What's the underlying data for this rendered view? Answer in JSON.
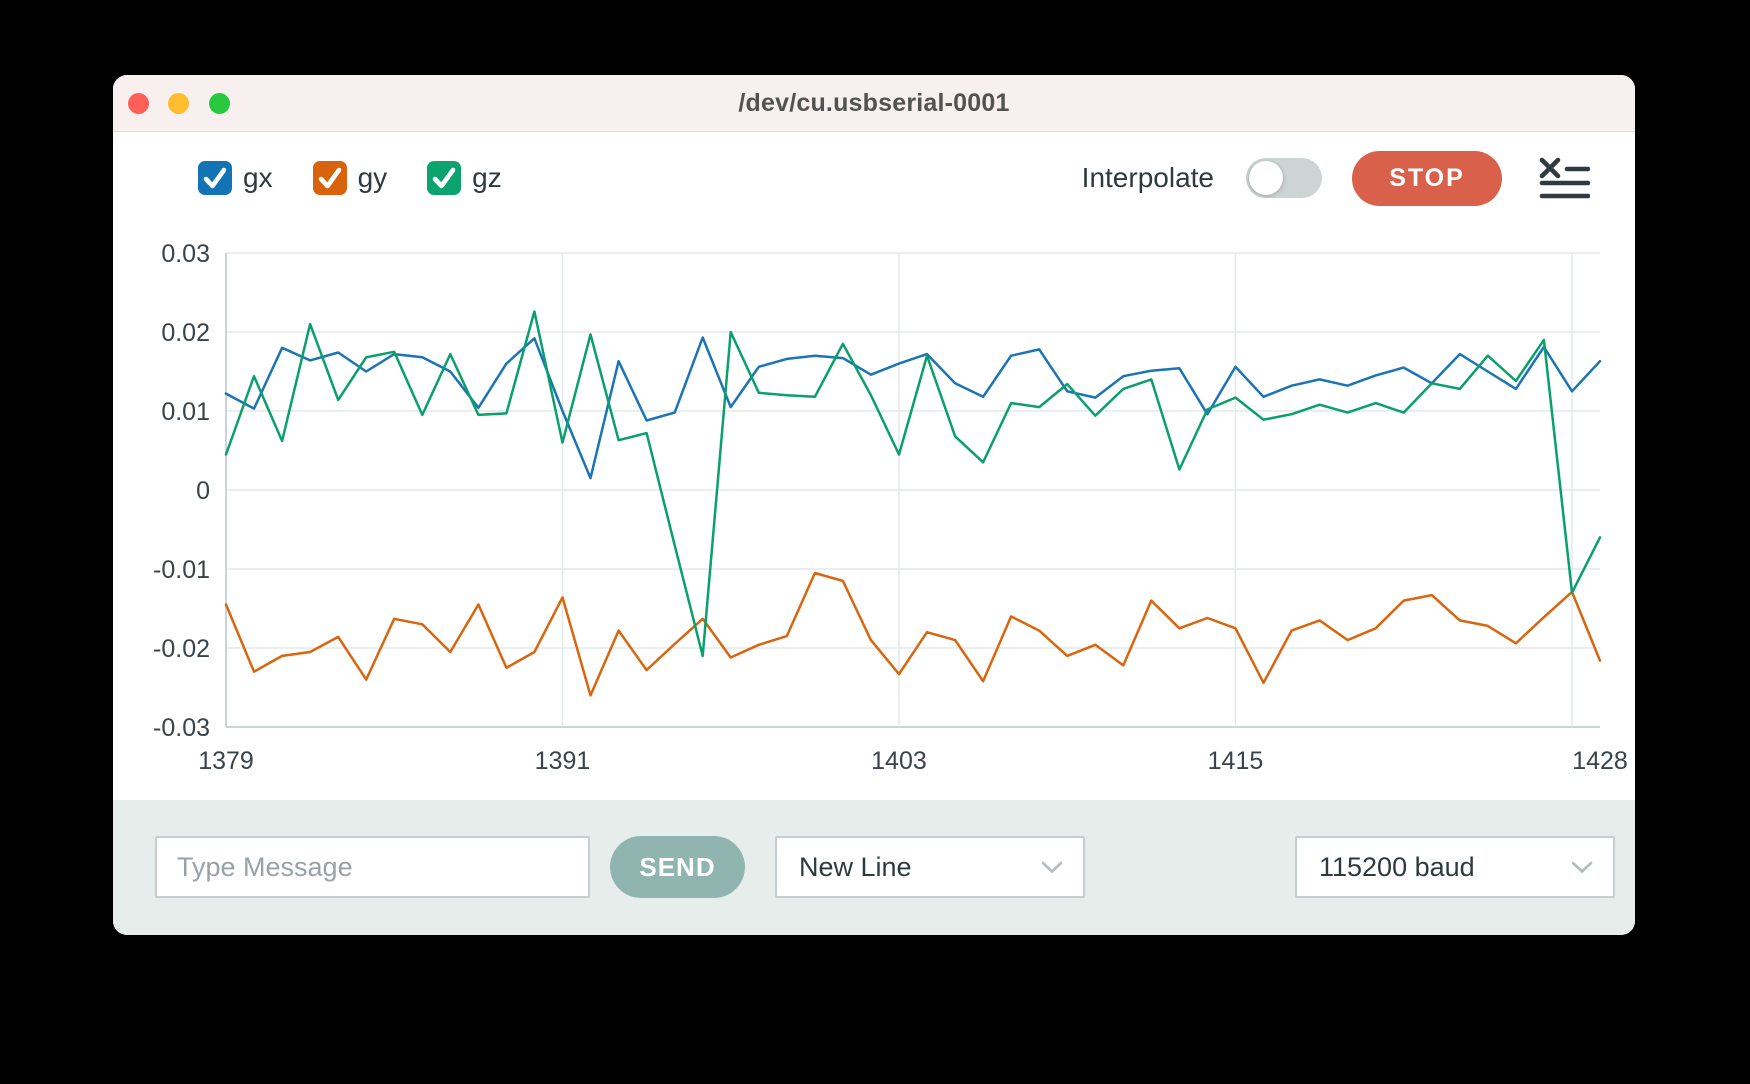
{
  "window": {
    "title": "/dev/cu.usbserial-0001"
  },
  "traffic_lights": {
    "close": "#ff5f57",
    "minimize": "#febc2e",
    "zoom": "#28c840"
  },
  "legend": {
    "items": [
      {
        "id": "gx",
        "label": "gx",
        "color": "#1273b5",
        "checked": true
      },
      {
        "id": "gy",
        "label": "gy",
        "color": "#d9620d",
        "checked": true
      },
      {
        "id": "gz",
        "label": "gz",
        "color": "#0ca36e",
        "checked": true
      }
    ]
  },
  "controls": {
    "interpolate_label": "Interpolate",
    "interpolate_on": false,
    "stop_label": "STOP",
    "stop_color": "#d9604b",
    "clear_icon": "clear-list-icon",
    "icon_color": "#2f3b40"
  },
  "chart_data": {
    "type": "line",
    "title": "",
    "xlabel": "",
    "ylabel": "",
    "xlim": [
      1379,
      1428
    ],
    "ylim": [
      -0.03,
      0.03
    ],
    "grid": true,
    "legend_position": "top-left",
    "y_ticks": [
      "0.03",
      "0.02",
      "0.01",
      "0",
      "-0.01",
      "-0.02",
      "-0.03"
    ],
    "y_tick_values": [
      0.03,
      0.02,
      0.01,
      0,
      -0.01,
      -0.02,
      -0.03
    ],
    "x_tick_labels": [
      "1379",
      "1391",
      "1403",
      "1415",
      "1428"
    ],
    "x_tick_values": [
      1379,
      1391,
      1403,
      1415,
      1428
    ],
    "x_gridline_values": [
      1379,
      1391,
      1403,
      1415,
      1427
    ],
    "x": [
      1379,
      1380,
      1381,
      1382,
      1383,
      1384,
      1385,
      1386,
      1387,
      1388,
      1389,
      1390,
      1391,
      1392,
      1393,
      1394,
      1395,
      1396,
      1397,
      1398,
      1399,
      1400,
      1401,
      1402,
      1403,
      1404,
      1405,
      1406,
      1407,
      1408,
      1409,
      1410,
      1411,
      1412,
      1413,
      1414,
      1415,
      1416,
      1417,
      1418,
      1419,
      1420,
      1421,
      1422,
      1423,
      1424,
      1425,
      1426,
      1427,
      1428
    ],
    "series": [
      {
        "name": "gx",
        "color": "#1b74b5",
        "values": [
          0.0122,
          0.0103,
          0.018,
          0.0164,
          0.0174,
          0.015,
          0.0172,
          0.0168,
          0.015,
          0.0104,
          0.016,
          0.0192,
          0.01,
          0.0015,
          0.0163,
          0.0088,
          0.0098,
          0.0193,
          0.0105,
          0.0156,
          0.0166,
          0.017,
          0.0167,
          0.0146,
          0.016,
          0.0172,
          0.0135,
          0.0118,
          0.017,
          0.0178,
          0.0125,
          0.0117,
          0.0144,
          0.0151,
          0.0154,
          0.0096,
          0.0156,
          0.0118,
          0.0132,
          0.014,
          0.0132,
          0.0145,
          0.0155,
          0.0135,
          0.0172,
          0.015,
          0.0128,
          0.0181,
          0.0125,
          0.0163
        ]
      },
      {
        "name": "gy",
        "color": "#d9650e",
        "values": [
          -0.0145,
          -0.023,
          -0.021,
          -0.0205,
          -0.0186,
          -0.024,
          -0.0163,
          -0.017,
          -0.0205,
          -0.0145,
          -0.0225,
          -0.0205,
          -0.0136,
          -0.026,
          -0.0178,
          -0.0228,
          -0.0195,
          -0.0163,
          -0.0212,
          -0.0196,
          -0.0185,
          -0.0105,
          -0.0115,
          -0.019,
          -0.0233,
          -0.018,
          -0.019,
          -0.0242,
          -0.016,
          -0.0178,
          -0.021,
          -0.0196,
          -0.0222,
          -0.014,
          -0.0175,
          -0.0162,
          -0.0175,
          -0.0244,
          -0.0178,
          -0.0165,
          -0.019,
          -0.0175,
          -0.014,
          -0.0133,
          -0.0165,
          -0.0172,
          -0.0194,
          -0.0161,
          -0.0129,
          -0.0216
        ]
      },
      {
        "name": "gz",
        "color": "#0aa06b",
        "values": [
          0.0045,
          0.0144,
          0.0062,
          0.021,
          0.0114,
          0.0168,
          0.0175,
          0.0095,
          0.0172,
          0.0095,
          0.0097,
          0.0226,
          0.006,
          0.0197,
          0.0063,
          0.0072,
          -0.007,
          -0.021,
          0.02,
          0.0123,
          0.012,
          0.0118,
          0.0185,
          0.012,
          0.0045,
          0.017,
          0.0068,
          0.0035,
          0.011,
          0.0105,
          0.0134,
          0.0094,
          0.0128,
          0.014,
          0.0026,
          0.0102,
          0.0117,
          0.0089,
          0.0096,
          0.0108,
          0.0098,
          0.011,
          0.0098,
          0.0135,
          0.0128,
          0.017,
          0.0138,
          0.019,
          -0.013,
          -0.006
        ]
      }
    ],
    "style": {
      "gridline_color": "#e3e9ea",
      "axis_color": "#cdd4d6",
      "tick_label_color": "#39434b",
      "line_width": 2.5
    }
  },
  "bottom_bar": {
    "message_placeholder": "Type Message",
    "send_label": "SEND",
    "send_color": "#90b5b1",
    "line_ending": "New Line",
    "baud_rate": "115200 baud",
    "background": "#e7edeb"
  },
  "icons": {
    "clear": "clear-list-icon",
    "chevron": "chevron-down-icon"
  }
}
